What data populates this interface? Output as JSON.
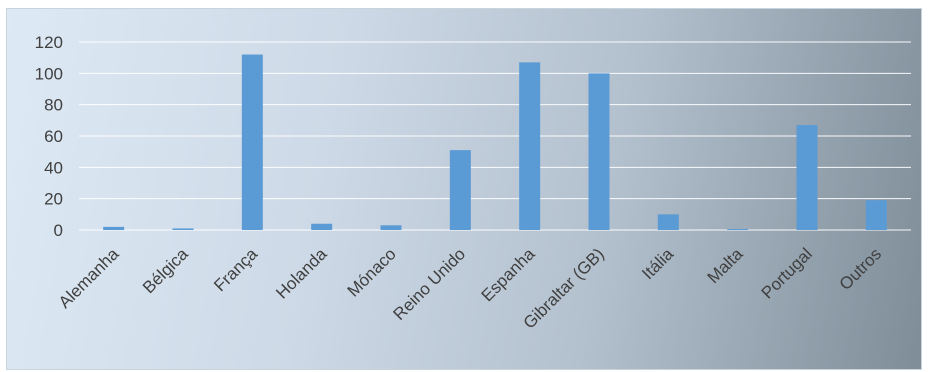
{
  "chart_data": {
    "type": "bar",
    "categories": [
      "Alemanha",
      "Bélgica",
      "França",
      "Holanda",
      "Mónaco",
      "Reino Unido",
      "Espanha",
      "Gibraltar (GB)",
      "Itália",
      "Malta",
      "Portugal",
      "Outros"
    ],
    "values": [
      2,
      1,
      112,
      4,
      3,
      51,
      107,
      100,
      10,
      0.5,
      67,
      19
    ],
    "yticks": [
      0,
      20,
      40,
      60,
      80,
      100,
      120
    ],
    "ylim": [
      0,
      120
    ],
    "grid": true,
    "legend": "none",
    "bar_color": "#5b9bd5"
  }
}
